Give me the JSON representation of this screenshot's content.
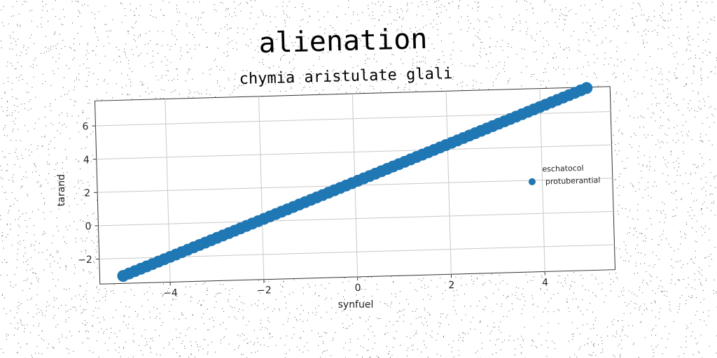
{
  "chart_data": {
    "type": "scatter",
    "title": "alienation",
    "subtitle": "chymia aristulate glali",
    "xlabel": "synfuel",
    "ylabel": "tarand",
    "xlim": [
      -5.5,
      5.5
    ],
    "ylim": [
      -3.5,
      7.5
    ],
    "xticks": [
      -4,
      -2,
      0,
      2,
      4
    ],
    "yticks": [
      -2,
      0,
      2,
      4,
      6
    ],
    "xtick_labels": [
      "−4",
      "−2",
      "0",
      "2",
      "4"
    ],
    "ytick_labels": [
      "−2",
      "0",
      "2",
      "4",
      "6"
    ],
    "grid": true,
    "legend": {
      "title": "eschatocol",
      "position": "right"
    },
    "series": [
      {
        "name": "protuberantial",
        "color": "#1f77b4",
        "x_start": -5,
        "x_end": 5,
        "count": 80,
        "slope": 1.05,
        "intercept": 2.2
      }
    ]
  }
}
